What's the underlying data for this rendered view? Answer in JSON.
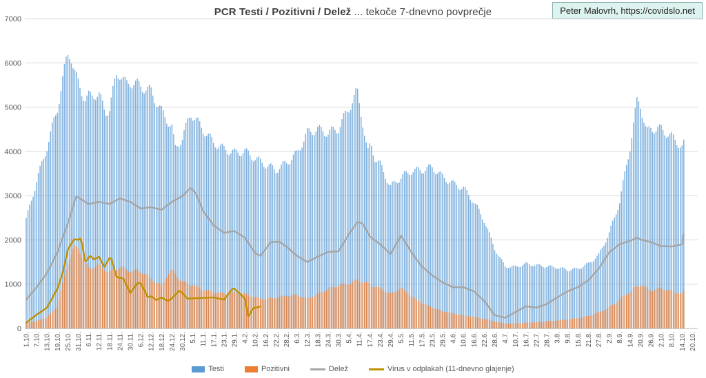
{
  "header": {
    "title_bold": "PCR Testi / Pozitivni / Delež",
    "title_rest": " ... tekoče 7-dnevno povprečje",
    "credit": "Peter Malovrh, https://covidslo.net"
  },
  "colors": {
    "testi": "#5B9BD5",
    "pozitivni": "#ED7D31",
    "delez": "#A5A5A5",
    "virus": "#BF9000",
    "grid": "#D9D9D9",
    "axis_text": "#595959",
    "title_text": "#404040",
    "badge_bg": "#DDF3F0",
    "badge_border": "#8FAFAF"
  },
  "chart_data": {
    "type": "bar",
    "title": "PCR Testi / Pozitivni / Delež ... tekoče 7-dnevno povprečje",
    "xlabel": "",
    "ylabel": "",
    "ylim": [
      0,
      7000
    ],
    "yticks": [
      0,
      1000,
      2000,
      3000,
      4000,
      5000,
      6000,
      7000
    ],
    "grid": true,
    "legend_position": "bottom",
    "x_encoding": "category index, one tick per 6 days, bars are daily 7-day averages",
    "categories": [
      "1.10.",
      "7.10.",
      "13.10.",
      "19.10.",
      "25.10.",
      "31.10.",
      "6.11.",
      "12.11.",
      "18.11.",
      "24.11.",
      "30.11.",
      "6.12.",
      "12.12.",
      "18.12.",
      "24.12.",
      "30.12.",
      "5.1.",
      "11.1.",
      "17.1.",
      "23.1.",
      "29.1.",
      "4.2.",
      "10.2.",
      "16.2.",
      "22.2.",
      "28.2.",
      "6.3.",
      "12.3.",
      "18.3.",
      "24.3.",
      "30.3.",
      "5.4.",
      "11.4.",
      "17.4.",
      "23.4.",
      "29.4.",
      "5.5.",
      "11.5.",
      "17.5.",
      "23.5.",
      "29.5.",
      "4.6.",
      "10.6.",
      "16.6.",
      "22.6.",
      "28.6.",
      "4.7.",
      "10.7.",
      "16.7.",
      "22.7.",
      "28.7.",
      "3.8.",
      "9.8.",
      "15.8.",
      "21.8.",
      "27.8.",
      "2.9.",
      "8.9.",
      "14.9.",
      "20.9.",
      "26.9.",
      "2.10.",
      "8.10.",
      "14.10.",
      "20.10."
    ],
    "series": [
      {
        "name": "Testi",
        "type": "bar",
        "color": "#5B9BD5",
        "points": [
          [
            0,
            2460
          ],
          [
            1,
            3330
          ],
          [
            2,
            4100
          ],
          [
            3,
            4980
          ],
          [
            3.8,
            6000
          ],
          [
            4,
            6200
          ],
          [
            4.25,
            6230
          ],
          [
            4.6,
            5800
          ],
          [
            5,
            5550
          ],
          [
            5.7,
            5150
          ],
          [
            6,
            5240
          ],
          [
            6.5,
            5300
          ],
          [
            7,
            5260
          ],
          [
            7.6,
            4900
          ],
          [
            8,
            4950
          ],
          [
            8.7,
            5780
          ],
          [
            9,
            5750
          ],
          [
            9.6,
            5500
          ],
          [
            10,
            5570
          ],
          [
            11,
            5480
          ],
          [
            12,
            5350
          ],
          [
            13,
            4900
          ],
          [
            14,
            4550
          ],
          [
            14.3,
            4060
          ],
          [
            15,
            4300
          ],
          [
            15.8,
            4870
          ],
          [
            17,
            4490
          ],
          [
            18,
            4200
          ],
          [
            19,
            4050
          ],
          [
            20,
            3970
          ],
          [
            21,
            4000
          ],
          [
            22,
            3840
          ],
          [
            23,
            3700
          ],
          [
            24,
            3580
          ],
          [
            25,
            3740
          ],
          [
            26,
            3950
          ],
          [
            27,
            4420
          ],
          [
            28,
            4500
          ],
          [
            29,
            4420
          ],
          [
            30,
            4520
          ],
          [
            31,
            4980
          ],
          [
            31.8,
            5360
          ],
          [
            32.3,
            4700
          ],
          [
            32.8,
            3950
          ],
          [
            33.1,
            4180
          ],
          [
            33.5,
            3850
          ],
          [
            34,
            3700
          ],
          [
            35,
            3200
          ],
          [
            36,
            3420
          ],
          [
            37,
            3560
          ],
          [
            38,
            3580
          ],
          [
            39,
            3640
          ],
          [
            40,
            3430
          ],
          [
            41,
            3270
          ],
          [
            42,
            3170
          ],
          [
            43,
            2860
          ],
          [
            44,
            2440
          ],
          [
            45,
            1800
          ],
          [
            46,
            1400
          ],
          [
            47,
            1390
          ],
          [
            48,
            1460
          ],
          [
            49,
            1430
          ],
          [
            50,
            1400
          ],
          [
            51,
            1380
          ],
          [
            52,
            1320
          ],
          [
            53,
            1350
          ],
          [
            54,
            1460
          ],
          [
            55,
            1660
          ],
          [
            56,
            2150
          ],
          [
            57,
            2860
          ],
          [
            58,
            4100
          ],
          [
            58.7,
            5170
          ],
          [
            59,
            5060
          ],
          [
            59.6,
            4420
          ],
          [
            60,
            4520
          ],
          [
            61,
            4500
          ],
          [
            62,
            4330
          ],
          [
            63,
            4100
          ],
          [
            63.2,
            4180
          ]
        ]
      },
      {
        "name": "Pozitivni",
        "type": "bar",
        "color": "#ED7D31",
        "points": [
          [
            0,
            130
          ],
          [
            1,
            170
          ],
          [
            2,
            250
          ],
          [
            3,
            500
          ],
          [
            4,
            1500
          ],
          [
            4.6,
            1830
          ],
          [
            5,
            1800
          ],
          [
            6,
            1350
          ],
          [
            7,
            1430
          ],
          [
            8,
            1260
          ],
          [
            9,
            1390
          ],
          [
            10,
            1300
          ],
          [
            11,
            1300
          ],
          [
            12,
            1130
          ],
          [
            13,
            950
          ],
          [
            13.8,
            1300
          ],
          [
            14.2,
            1280
          ],
          [
            15,
            1050
          ],
          [
            16,
            980
          ],
          [
            17,
            870
          ],
          [
            18,
            820
          ],
          [
            19,
            790
          ],
          [
            20,
            810
          ],
          [
            21,
            780
          ],
          [
            22,
            700
          ],
          [
            23,
            660
          ],
          [
            24,
            700
          ],
          [
            25,
            740
          ],
          [
            26,
            760
          ],
          [
            27,
            670
          ],
          [
            28,
            780
          ],
          [
            29,
            890
          ],
          [
            30,
            975
          ],
          [
            31,
            1010
          ],
          [
            31.8,
            1100
          ],
          [
            33,
            990
          ],
          [
            34,
            900
          ],
          [
            35,
            780
          ],
          [
            36,
            915
          ],
          [
            37,
            730
          ],
          [
            38,
            575
          ],
          [
            39,
            470
          ],
          [
            40,
            390
          ],
          [
            41,
            340
          ],
          [
            42,
            295
          ],
          [
            43,
            265
          ],
          [
            44,
            215
          ],
          [
            45,
            160
          ],
          [
            46,
            110
          ],
          [
            47,
            110
          ],
          [
            48,
            130
          ],
          [
            49,
            140
          ],
          [
            50,
            160
          ],
          [
            51,
            180
          ],
          [
            52,
            200
          ],
          [
            53,
            230
          ],
          [
            54,
            280
          ],
          [
            55,
            360
          ],
          [
            56,
            470
          ],
          [
            57,
            650
          ],
          [
            58,
            840
          ],
          [
            59,
            990
          ],
          [
            60,
            860
          ],
          [
            61,
            910
          ],
          [
            62,
            840
          ],
          [
            63,
            780
          ],
          [
            63.2,
            860
          ]
        ]
      },
      {
        "name": "Delež",
        "type": "line",
        "color": "#A5A5A5",
        "points": [
          [
            0,
            650
          ],
          [
            1,
            930
          ],
          [
            2,
            1250
          ],
          [
            3,
            1720
          ],
          [
            4,
            2370
          ],
          [
            4.8,
            2990
          ],
          [
            5,
            2960
          ],
          [
            6,
            2810
          ],
          [
            7,
            2860
          ],
          [
            8,
            2810
          ],
          [
            9,
            2940
          ],
          [
            10,
            2860
          ],
          [
            11,
            2710
          ],
          [
            12,
            2740
          ],
          [
            13,
            2680
          ],
          [
            14,
            2860
          ],
          [
            15,
            2990
          ],
          [
            15.8,
            3180
          ],
          [
            16.3,
            3050
          ],
          [
            17,
            2650
          ],
          [
            18,
            2330
          ],
          [
            19,
            2160
          ],
          [
            20,
            2200
          ],
          [
            21,
            2050
          ],
          [
            22,
            1700
          ],
          [
            22.5,
            1640
          ],
          [
            23.5,
            1950
          ],
          [
            24.3,
            1960
          ],
          [
            25,
            1850
          ],
          [
            26,
            1640
          ],
          [
            27,
            1500
          ],
          [
            28,
            1620
          ],
          [
            29,
            1730
          ],
          [
            30,
            1740
          ],
          [
            31,
            2130
          ],
          [
            31.8,
            2400
          ],
          [
            32.3,
            2380
          ],
          [
            33,
            2080
          ],
          [
            34,
            1900
          ],
          [
            35,
            1680
          ],
          [
            36,
            2100
          ],
          [
            37,
            1720
          ],
          [
            38,
            1400
          ],
          [
            39,
            1200
          ],
          [
            40,
            1040
          ],
          [
            41,
            930
          ],
          [
            42,
            930
          ],
          [
            43,
            840
          ],
          [
            44,
            620
          ],
          [
            45,
            300
          ],
          [
            46,
            240
          ],
          [
            47,
            370
          ],
          [
            48,
            500
          ],
          [
            49,
            470
          ],
          [
            50,
            550
          ],
          [
            51,
            700
          ],
          [
            52,
            840
          ],
          [
            53,
            930
          ],
          [
            54,
            1090
          ],
          [
            55,
            1350
          ],
          [
            56,
            1720
          ],
          [
            57,
            1900
          ],
          [
            58,
            1980
          ],
          [
            58.7,
            2050
          ],
          [
            59,
            2010
          ],
          [
            60,
            1950
          ],
          [
            61,
            1860
          ],
          [
            62,
            1850
          ],
          [
            63,
            1900
          ],
          [
            63.2,
            2160
          ]
        ]
      },
      {
        "name": "Virus v odplakah (11-dnevno glajenje)",
        "type": "line",
        "color": "#BF9000",
        "points": [
          [
            0,
            130
          ],
          [
            1,
            310
          ],
          [
            2,
            470
          ],
          [
            3,
            900
          ],
          [
            3.5,
            1250
          ],
          [
            4,
            1780
          ],
          [
            4.6,
            2020
          ],
          [
            5,
            2000
          ],
          [
            5.25,
            2050
          ],
          [
            5.7,
            1480
          ],
          [
            6.1,
            1650
          ],
          [
            6.5,
            1560
          ],
          [
            7,
            1620
          ],
          [
            7.5,
            1390
          ],
          [
            8.1,
            1630
          ],
          [
            8.7,
            1150
          ],
          [
            9.3,
            1140
          ],
          [
            10,
            800
          ],
          [
            10.7,
            1030
          ],
          [
            11,
            1020
          ],
          [
            11.7,
            700
          ],
          [
            12,
            730
          ],
          [
            12.5,
            640
          ],
          [
            13,
            700
          ],
          [
            13.6,
            620
          ],
          [
            14,
            680
          ],
          [
            14.7,
            860
          ],
          [
            15,
            800
          ],
          [
            15.5,
            670
          ],
          [
            16,
            680
          ],
          [
            17,
            690
          ],
          [
            18,
            700
          ],
          [
            19,
            650
          ],
          [
            19.9,
            920
          ],
          [
            21,
            680
          ],
          [
            21.35,
            260
          ],
          [
            21.8,
            460
          ],
          [
            22.3,
            480
          ],
          [
            22.6,
            510
          ]
        ]
      }
    ]
  },
  "y_axis": {
    "tick_labels": [
      "0",
      "1000",
      "2000",
      "3000",
      "4000",
      "5000",
      "6000",
      "7000"
    ]
  }
}
